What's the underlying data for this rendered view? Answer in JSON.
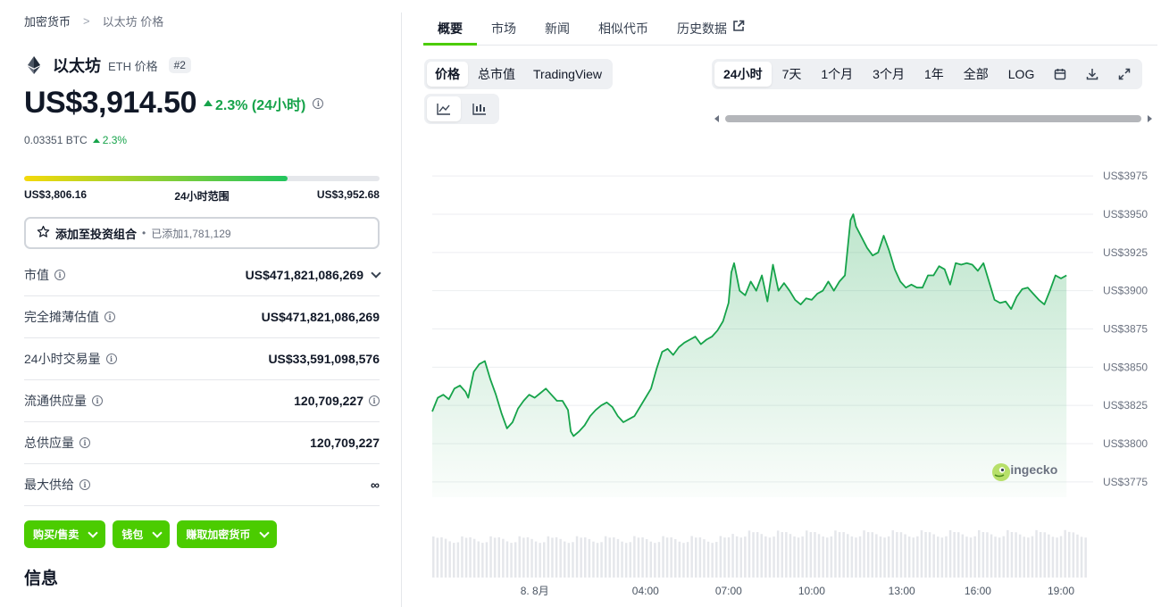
{
  "breadcrumb": {
    "root": "加密货币",
    "sep": ">",
    "current": "以太坊 价格"
  },
  "coin": {
    "name": "以太坊",
    "sub": "ETH 价格",
    "rank": "#2"
  },
  "price": {
    "value": "US$3,914.50",
    "change": "2.3% (24小时)",
    "btc": "0.03351 BTC",
    "btc_change": "2.3%"
  },
  "range": {
    "low": "US$3,806.16",
    "label": "24小时范围",
    "high": "US$3,952.68",
    "fill_pct": 74
  },
  "portfolio": {
    "label": "添加至投资组合",
    "dot": "•",
    "added": "已添加1,781,129"
  },
  "stats": [
    {
      "key": "市值",
      "value": "US$471,821,086,269",
      "info": true,
      "dropdown": true
    },
    {
      "key": "完全摊薄估值",
      "value": "US$471,821,086,269",
      "info": true
    },
    {
      "key": "24小时交易量",
      "value": "US$33,591,098,576",
      "info": true
    },
    {
      "key": "流通供应量",
      "value": "120,709,227",
      "info": true,
      "value_info": true
    },
    {
      "key": "总供应量",
      "value": "120,709,227",
      "info": true
    },
    {
      "key": "最大供给",
      "value": "∞",
      "info": true
    }
  ],
  "actions": {
    "buy": "购买/售卖",
    "wallet": "钱包",
    "earn": "赚取加密货币"
  },
  "info_title": "信息",
  "tabs": [
    "概要",
    "市场",
    "新闻",
    "相似代币",
    "历史数据"
  ],
  "chart_modes": [
    "价格",
    "总市值",
    "TradingView"
  ],
  "time_ranges": [
    "24小时",
    "7天",
    "1个月",
    "3个月",
    "1年",
    "全部",
    "LOG"
  ],
  "watermark": "coingecko",
  "icons": {
    "eth": "ethereum-icon",
    "star": "star-icon",
    "calendar": "calendar-icon",
    "download": "download-icon",
    "expand": "expand-icon",
    "external": "external-link-icon",
    "line": "line-chart-icon",
    "candle": "candlestick-icon"
  },
  "colors": {
    "accent": "#4bcc00",
    "up": "#16a34a",
    "line": "#16a34a"
  },
  "chart_data": {
    "type": "area",
    "title": "",
    "ylim": [
      3765,
      3985
    ],
    "y_ticks": [
      "US$3975",
      "US$3950",
      "US$3925",
      "US$3900",
      "US$3875",
      "US$3850",
      "US$3825",
      "US$3800",
      "US$3775"
    ],
    "y_tick_values": [
      3975,
      3950,
      3925,
      3900,
      3875,
      3850,
      3825,
      3800,
      3775
    ],
    "x_ticks": [
      "8. 8月",
      "04:00",
      "07:00",
      "10:00",
      "13:00",
      "16:00",
      "19:00"
    ],
    "x_tick_hours": [
      0,
      4,
      7,
      10,
      13.25,
      16,
      19
    ],
    "x_range_hours": [
      -3.7,
      20.0
    ],
    "series": [
      {
        "points": [
          [
            -3.7,
            3821
          ],
          [
            -3.5,
            3830
          ],
          [
            -3.3,
            3832
          ],
          [
            -3.1,
            3829
          ],
          [
            -2.9,
            3836
          ],
          [
            -2.7,
            3838
          ],
          [
            -2.5,
            3834
          ],
          [
            -2.4,
            3830
          ],
          [
            -2.2,
            3847
          ],
          [
            -2.0,
            3852
          ],
          [
            -1.8,
            3854
          ],
          [
            -1.6,
            3842
          ],
          [
            -1.4,
            3832
          ],
          [
            -1.2,
            3820
          ],
          [
            -1.0,
            3810
          ],
          [
            -0.8,
            3814
          ],
          [
            -0.6,
            3823
          ],
          [
            -0.4,
            3828
          ],
          [
            -0.2,
            3832
          ],
          [
            0.0,
            3830
          ],
          [
            0.2,
            3833
          ],
          [
            0.4,
            3836
          ],
          [
            0.6,
            3832
          ],
          [
            0.8,
            3828
          ],
          [
            1.0,
            3828
          ],
          [
            1.2,
            3822
          ],
          [
            1.3,
            3808
          ],
          [
            1.4,
            3805
          ],
          [
            1.6,
            3808
          ],
          [
            1.8,
            3812
          ],
          [
            2.0,
            3818
          ],
          [
            2.2,
            3822
          ],
          [
            2.4,
            3825
          ],
          [
            2.6,
            3827
          ],
          [
            2.8,
            3824
          ],
          [
            3.0,
            3818
          ],
          [
            3.2,
            3814
          ],
          [
            3.4,
            3816
          ],
          [
            3.6,
            3818
          ],
          [
            3.8,
            3824
          ],
          [
            4.0,
            3830
          ],
          [
            4.2,
            3836
          ],
          [
            4.4,
            3849
          ],
          [
            4.6,
            3860
          ],
          [
            4.8,
            3862
          ],
          [
            5.0,
            3858
          ],
          [
            5.2,
            3863
          ],
          [
            5.4,
            3866
          ],
          [
            5.6,
            3868
          ],
          [
            5.8,
            3870
          ],
          [
            6.0,
            3865
          ],
          [
            6.2,
            3868
          ],
          [
            6.4,
            3870
          ],
          [
            6.6,
            3874
          ],
          [
            6.8,
            3880
          ],
          [
            7.0,
            3892
          ],
          [
            7.1,
            3912
          ],
          [
            7.2,
            3918
          ],
          [
            7.4,
            3900
          ],
          [
            7.6,
            3897
          ],
          [
            7.8,
            3906
          ],
          [
            8.0,
            3900
          ],
          [
            8.2,
            3910
          ],
          [
            8.4,
            3893
          ],
          [
            8.6,
            3917
          ],
          [
            8.8,
            3900
          ],
          [
            9.0,
            3905
          ],
          [
            9.2,
            3900
          ],
          [
            9.4,
            3894
          ],
          [
            9.6,
            3891
          ],
          [
            9.8,
            3895
          ],
          [
            10.0,
            3894
          ],
          [
            10.2,
            3898
          ],
          [
            10.4,
            3900
          ],
          [
            10.6,
            3906
          ],
          [
            10.8,
            3900
          ],
          [
            11.0,
            3906
          ],
          [
            11.2,
            3910
          ],
          [
            11.4,
            3946
          ],
          [
            11.5,
            3950
          ],
          [
            11.6,
            3942
          ],
          [
            11.8,
            3935
          ],
          [
            12.0,
            3928
          ],
          [
            12.2,
            3923
          ],
          [
            12.4,
            3925
          ],
          [
            12.6,
            3936
          ],
          [
            12.8,
            3926
          ],
          [
            13.0,
            3914
          ],
          [
            13.2,
            3906
          ],
          [
            13.4,
            3902
          ],
          [
            13.6,
            3904
          ],
          [
            13.8,
            3902
          ],
          [
            14.0,
            3902
          ],
          [
            14.2,
            3910
          ],
          [
            14.4,
            3910
          ],
          [
            14.6,
            3916
          ],
          [
            14.8,
            3914
          ],
          [
            15.0,
            3904
          ],
          [
            15.2,
            3918
          ],
          [
            15.4,
            3917
          ],
          [
            15.6,
            3918
          ],
          [
            15.8,
            3917
          ],
          [
            16.0,
            3913
          ],
          [
            16.2,
            3918
          ],
          [
            16.4,
            3906
          ],
          [
            16.6,
            3894
          ],
          [
            16.8,
            3892
          ],
          [
            17.0,
            3893
          ],
          [
            17.2,
            3888
          ],
          [
            17.4,
            3896
          ],
          [
            17.6,
            3901
          ],
          [
            17.8,
            3902
          ],
          [
            18.0,
            3898
          ],
          [
            18.2,
            3894
          ],
          [
            18.4,
            3891
          ],
          [
            18.6,
            3900
          ],
          [
            18.8,
            3910
          ],
          [
            19.0,
            3908
          ],
          [
            19.2,
            3910
          ]
        ]
      }
    ]
  }
}
